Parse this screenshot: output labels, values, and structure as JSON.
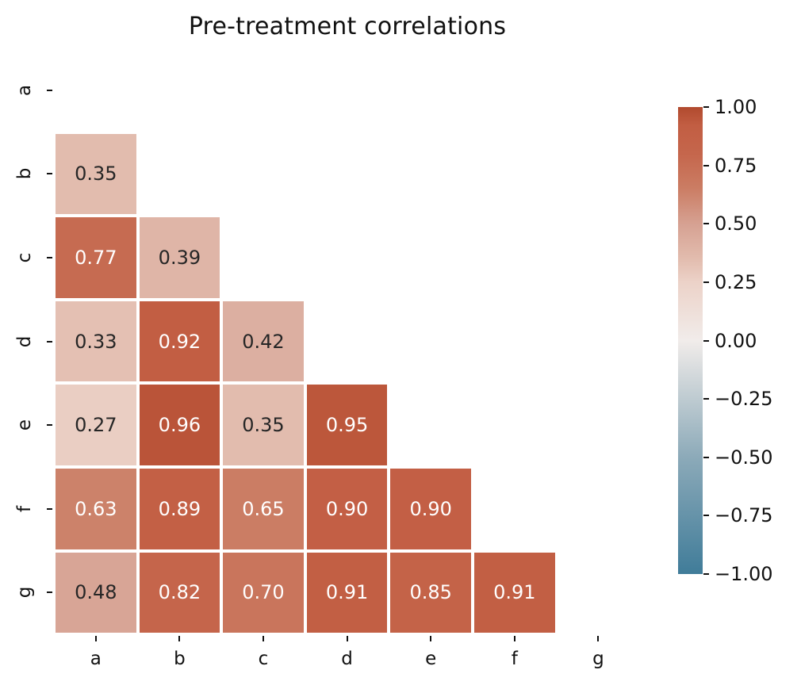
{
  "chart_data": {
    "type": "heatmap",
    "title": "Pre-treatment correlations",
    "x_categories": [
      "a",
      "b",
      "c",
      "d",
      "e",
      "f",
      "g"
    ],
    "y_categories": [
      "a",
      "b",
      "c",
      "d",
      "e",
      "f",
      "g"
    ],
    "mask": "upper triangle and diagonal hidden (lower-triangle correlation matrix)",
    "values": [
      [
        null,
        null,
        null,
        null,
        null,
        null,
        null
      ],
      [
        0.35,
        null,
        null,
        null,
        null,
        null,
        null
      ],
      [
        0.77,
        0.39,
        null,
        null,
        null,
        null,
        null
      ],
      [
        0.33,
        0.92,
        0.42,
        null,
        null,
        null,
        null
      ],
      [
        0.27,
        0.96,
        0.35,
        0.95,
        null,
        null,
        null
      ],
      [
        0.63,
        0.89,
        0.65,
        0.9,
        0.9,
        null,
        null
      ],
      [
        0.48,
        0.82,
        0.7,
        0.91,
        0.85,
        0.91,
        null
      ]
    ],
    "annotation_format": "0.00",
    "annotation_dark_color": "#262626",
    "annotation_light_color": "#ffffff",
    "cell_gap_color": "#ffffff",
    "grid": false,
    "vmin": -1.0,
    "vmax": 1.0,
    "colormap_stops": [
      {
        "v": -1.0,
        "color": "#407c99"
      },
      {
        "v": -0.5,
        "color": "#8caab9"
      },
      {
        "v": -0.25,
        "color": "#becbd1"
      },
      {
        "v": 0.0,
        "color": "#f1ecea"
      },
      {
        "v": 0.25,
        "color": "#ecd2c8"
      },
      {
        "v": 0.35,
        "color": "#e2bcae"
      },
      {
        "v": 0.5,
        "color": "#d6a192"
      },
      {
        "v": 0.65,
        "color": "#cb7d64"
      },
      {
        "v": 0.8,
        "color": "#c5664c"
      },
      {
        "v": 0.92,
        "color": "#c25e43"
      },
      {
        "v": 1.0,
        "color": "#b14a2e"
      }
    ],
    "colorbar": {
      "position": "right",
      "ticks": [
        {
          "value": 1.0,
          "label": "1.00"
        },
        {
          "value": 0.75,
          "label": "0.75"
        },
        {
          "value": 0.5,
          "label": "0.50"
        },
        {
          "value": 0.25,
          "label": "0.25"
        },
        {
          "value": 0.0,
          "label": "0.00"
        },
        {
          "value": -0.25,
          "label": "−0.25"
        },
        {
          "value": -0.5,
          "label": "−0.50"
        },
        {
          "value": -0.75,
          "label": "−0.75"
        },
        {
          "value": -1.0,
          "label": "−1.00"
        }
      ]
    }
  }
}
